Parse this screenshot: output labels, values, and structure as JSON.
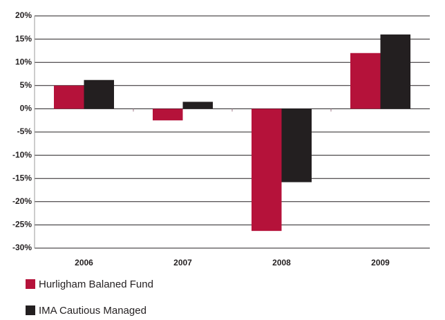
{
  "chart_data": {
    "type": "bar",
    "categories": [
      "2006",
      "2007",
      "2008",
      "2009"
    ],
    "series": [
      {
        "name": "Hurligham Balaned Fund",
        "color": "#b5123a",
        "values": [
          5,
          -2.5,
          -26.3,
          12
        ]
      },
      {
        "name": "IMA Cautious Managed",
        "color": "#231f20",
        "values": [
          6.2,
          1.5,
          -15.8,
          16
        ]
      }
    ],
    "ylim": [
      -30,
      20
    ],
    "yticks": [
      {
        "value": -30,
        "label": "-30%"
      },
      {
        "value": -25,
        "label": "-25%"
      },
      {
        "value": -20,
        "label": "-20%"
      },
      {
        "value": -15,
        "label": "-15%"
      },
      {
        "value": -10,
        "label": "-10%"
      },
      {
        "value": -5,
        "label": "-5%"
      },
      {
        "value": 0,
        "label": "0%"
      },
      {
        "value": 5,
        "label": "5%"
      },
      {
        "value": 10,
        "label": "10%"
      },
      {
        "value": 15,
        "label": "15%"
      },
      {
        "value": 20,
        "label": "20%"
      }
    ],
    "grid": true
  }
}
